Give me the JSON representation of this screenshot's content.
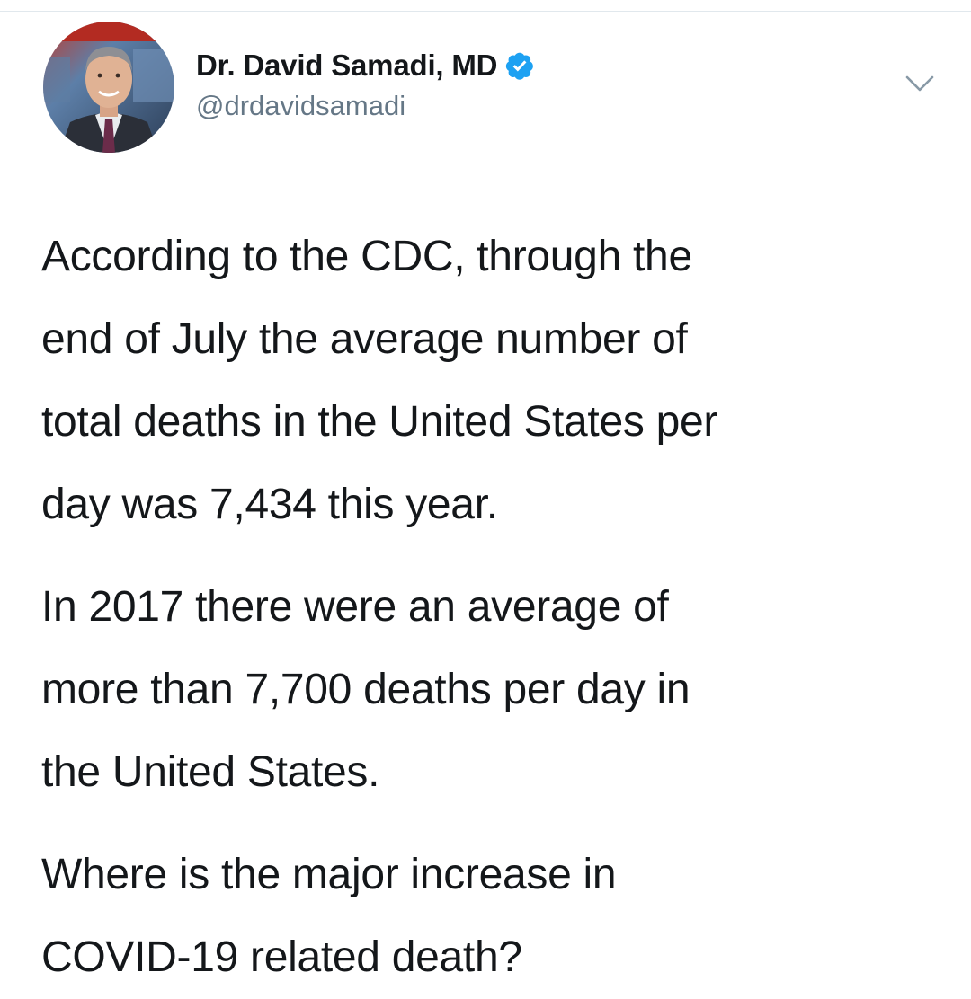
{
  "tweet": {
    "author": {
      "display_name": "Dr. David Samadi, MD",
      "handle": "@drdavidsamadi",
      "verified": true,
      "avatar_icon": "profile-photo"
    },
    "menu_icon": "chevron-down-icon",
    "paragraphs": [
      "According to the CDC, through the\nend of July the average number of\ntotal deaths in the United States per\nday was 7,434 this year.",
      "In 2017 there were an average of\nmore than 7,700 deaths per day in\nthe United States.",
      "Where is the major increase in\nCOVID-19 related death?"
    ]
  },
  "colors": {
    "text_primary": "#14171a",
    "text_secondary": "#657786",
    "verified_blue": "#1da1f2",
    "divider": "#e1e8ed"
  }
}
